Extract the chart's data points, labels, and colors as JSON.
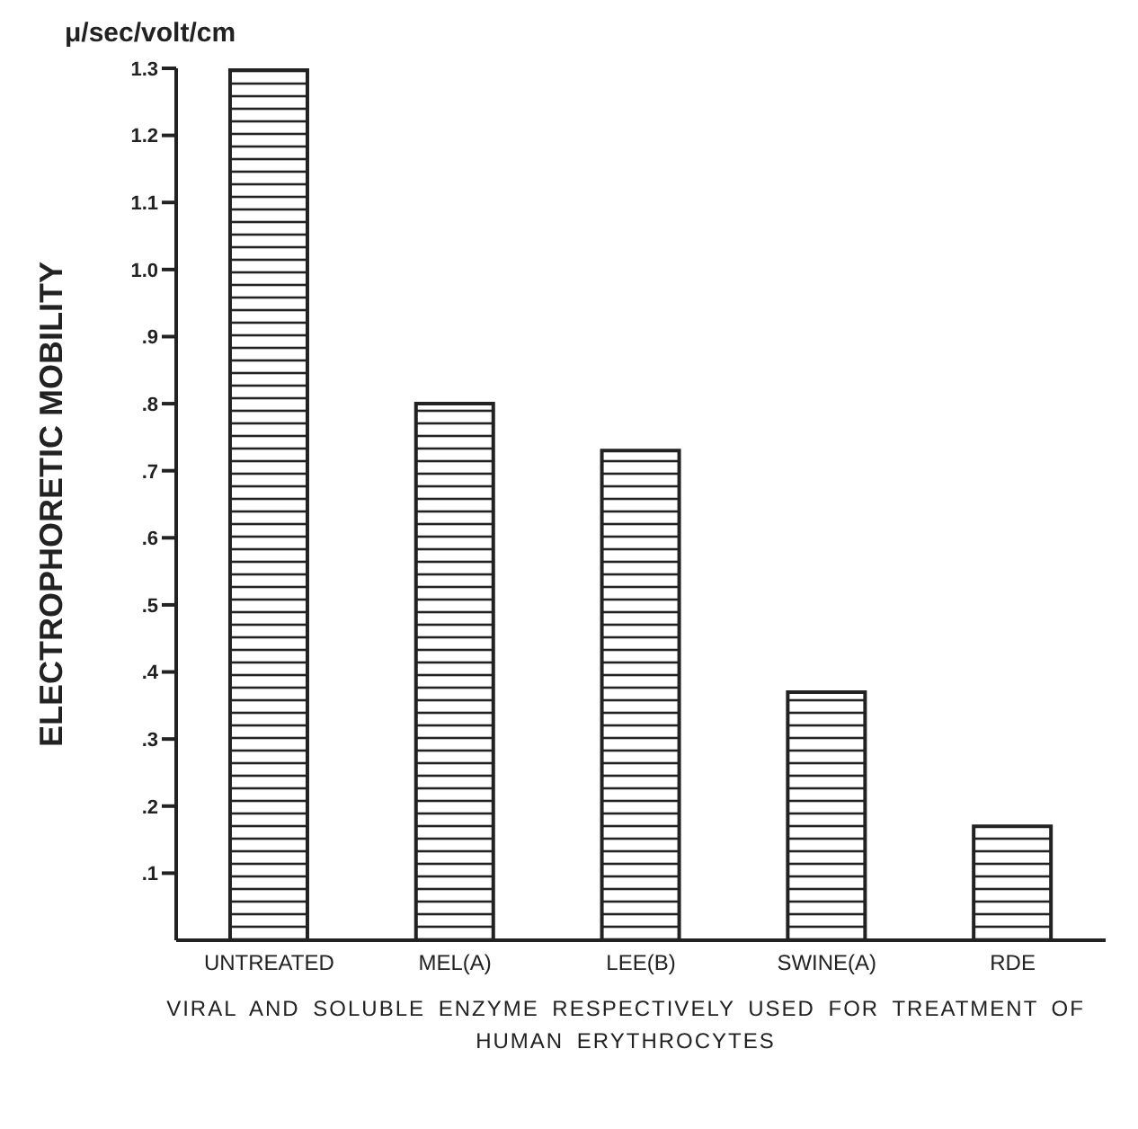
{
  "chart_data": {
    "type": "bar",
    "ylabel": "ELECTROPHORETIC MOBILITY",
    "xlabel": "VIRAL AND SOLUBLE ENZYME RESPECTIVELY USED FOR TREATMENT OF HUMAN ERYTHROCYTES",
    "annotations": [
      "μ/sec/volt/cm"
    ],
    "categories": [
      "UNTREATED",
      "MEL(A)",
      "LEE(B)",
      "SWINE(A)",
      "RDE"
    ],
    "values": [
      1.3,
      0.8,
      0.73,
      0.37,
      0.17
    ],
    "color": "#222222",
    "ylim": [
      0,
      1.3
    ],
    "yticks": [
      {
        "value": 0.1,
        "label": ".1"
      },
      {
        "value": 0.2,
        "label": ".2"
      },
      {
        "value": 0.3,
        "label": ".3"
      },
      {
        "value": 0.4,
        "label": ".4"
      },
      {
        "value": 0.5,
        "label": ".5"
      },
      {
        "value": 0.6,
        "label": ".6"
      },
      {
        "value": 0.7,
        "label": ".7"
      },
      {
        "value": 0.8,
        "label": ".8"
      },
      {
        "value": 0.9,
        "label": ".9"
      },
      {
        "value": 1.0,
        "label": "1.0"
      },
      {
        "value": 1.1,
        "label": "1.1"
      },
      {
        "value": 1.2,
        "label": "1.2"
      },
      {
        "value": 1.3,
        "label": "1.3"
      }
    ],
    "grid": false,
    "legend": false
  }
}
